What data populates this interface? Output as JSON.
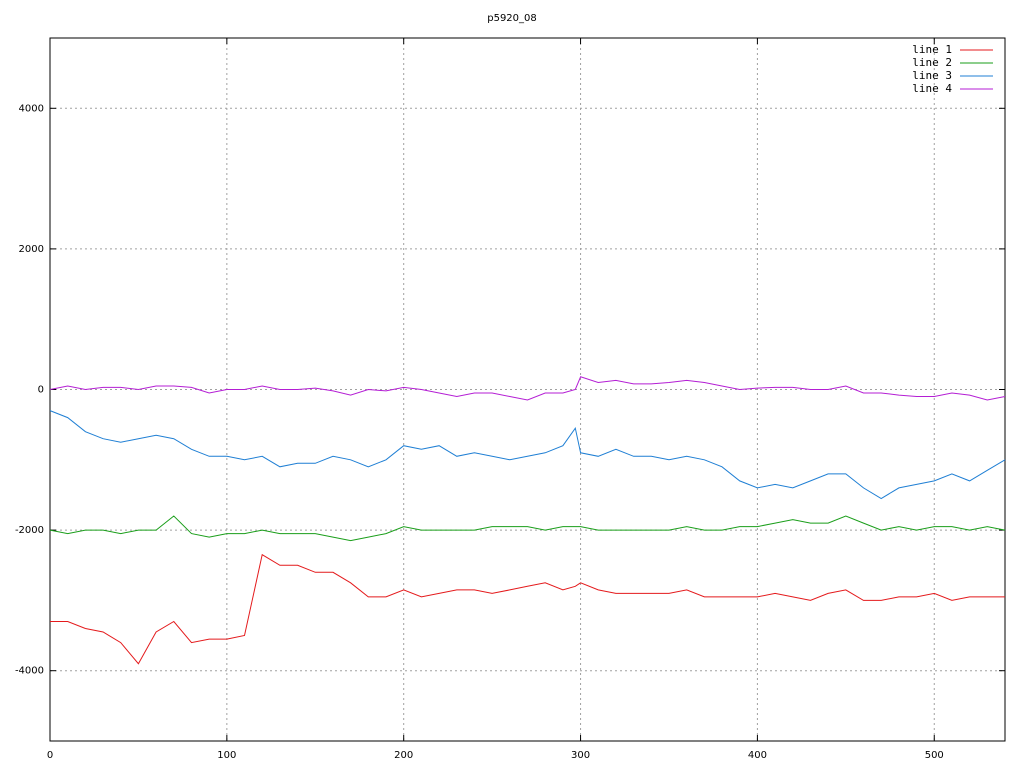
{
  "chart_data": {
    "type": "line",
    "title": "p5920_08",
    "x": [
      0,
      10,
      20,
      30,
      40,
      50,
      60,
      70,
      80,
      90,
      100,
      110,
      120,
      130,
      140,
      150,
      160,
      170,
      180,
      190,
      200,
      210,
      220,
      230,
      240,
      250,
      260,
      270,
      280,
      290,
      297,
      300,
      310,
      320,
      330,
      340,
      350,
      360,
      370,
      380,
      390,
      400,
      410,
      420,
      430,
      440,
      450,
      460,
      470,
      480,
      490,
      500,
      510,
      520,
      530,
      540
    ],
    "series": [
      {
        "name": "line 1",
        "color": "#e41a1c",
        "values": [
          -3300,
          -3300,
          -3400,
          -3450,
          -3600,
          -3900,
          -3450,
          -3300,
          -3600,
          -3550,
          -3550,
          -3500,
          -2350,
          -2500,
          -2500,
          -2600,
          -2600,
          -2750,
          -2950,
          -2950,
          -2850,
          -2950,
          -2900,
          -2850,
          -2850,
          -2900,
          -2850,
          -2800,
          -2750,
          -2850,
          -2800,
          -2750,
          -2850,
          -2900,
          -2900,
          -2900,
          -2900,
          -2850,
          -2950,
          -2950,
          -2950,
          -2950,
          -2900,
          -2950,
          -3000,
          -2900,
          -2850,
          -3000,
          -3000,
          -2950,
          -2950,
          -2900,
          -3000,
          -2950,
          -2950,
          -2950
        ]
      },
      {
        "name": "line 2",
        "color": "#1a9e1a",
        "values": [
          -2000,
          -2050,
          -2000,
          -2000,
          -2050,
          -2000,
          -2000,
          -1800,
          -2050,
          -2100,
          -2050,
          -2050,
          -2000,
          -2050,
          -2050,
          -2050,
          -2100,
          -2150,
          -2100,
          -2050,
          -1950,
          -2000,
          -2000,
          -2000,
          -2000,
          -1950,
          -1950,
          -1950,
          -2000,
          -1950,
          -1950,
          -1950,
          -2000,
          -2000,
          -2000,
          -2000,
          -2000,
          -1950,
          -2000,
          -2000,
          -1950,
          -1950,
          -1900,
          -1850,
          -1900,
          -1900,
          -1800,
          -1900,
          -2000,
          -1950,
          -2000,
          -1950,
          -1950,
          -2000,
          -1950,
          -2000
        ]
      },
      {
        "name": "line 3",
        "color": "#1f7fd4",
        "values": [
          -300,
          -400,
          -600,
          -700,
          -750,
          -700,
          -650,
          -700,
          -850,
          -950,
          -950,
          -1000,
          -950,
          -1100,
          -1050,
          -1050,
          -950,
          -1000,
          -1100,
          -1000,
          -800,
          -850,
          -800,
          -950,
          -900,
          -950,
          -1000,
          -950,
          -900,
          -800,
          -550,
          -900,
          -950,
          -850,
          -950,
          -950,
          -1000,
          -950,
          -1000,
          -1100,
          -1300,
          -1400,
          -1350,
          -1400,
          -1300,
          -1200,
          -1200,
          -1400,
          -1550,
          -1400,
          -1350,
          -1300,
          -1200,
          -1300,
          -1150,
          -1000
        ]
      },
      {
        "name": "line 4",
        "color": "#b41ed4",
        "values": [
          0,
          50,
          0,
          30,
          30,
          0,
          50,
          50,
          30,
          -50,
          0,
          0,
          50,
          0,
          0,
          20,
          -20,
          -80,
          0,
          -20,
          30,
          0,
          -50,
          -100,
          -50,
          -50,
          -100,
          -150,
          -50,
          -50,
          0,
          180,
          100,
          130,
          80,
          80,
          100,
          130,
          100,
          50,
          0,
          20,
          30,
          30,
          0,
          0,
          50,
          -50,
          -50,
          -80,
          -100,
          -100,
          -50,
          -80,
          -150,
          -100
        ]
      }
    ],
    "xlim": [
      0,
      540
    ],
    "xticks": [
      0,
      100,
      200,
      300,
      400,
      500
    ],
    "ylim": [
      -5000,
      5000
    ],
    "yticks": [
      -4000,
      -2000,
      0,
      2000,
      4000
    ],
    "grid": true,
    "legend": "top-right"
  }
}
